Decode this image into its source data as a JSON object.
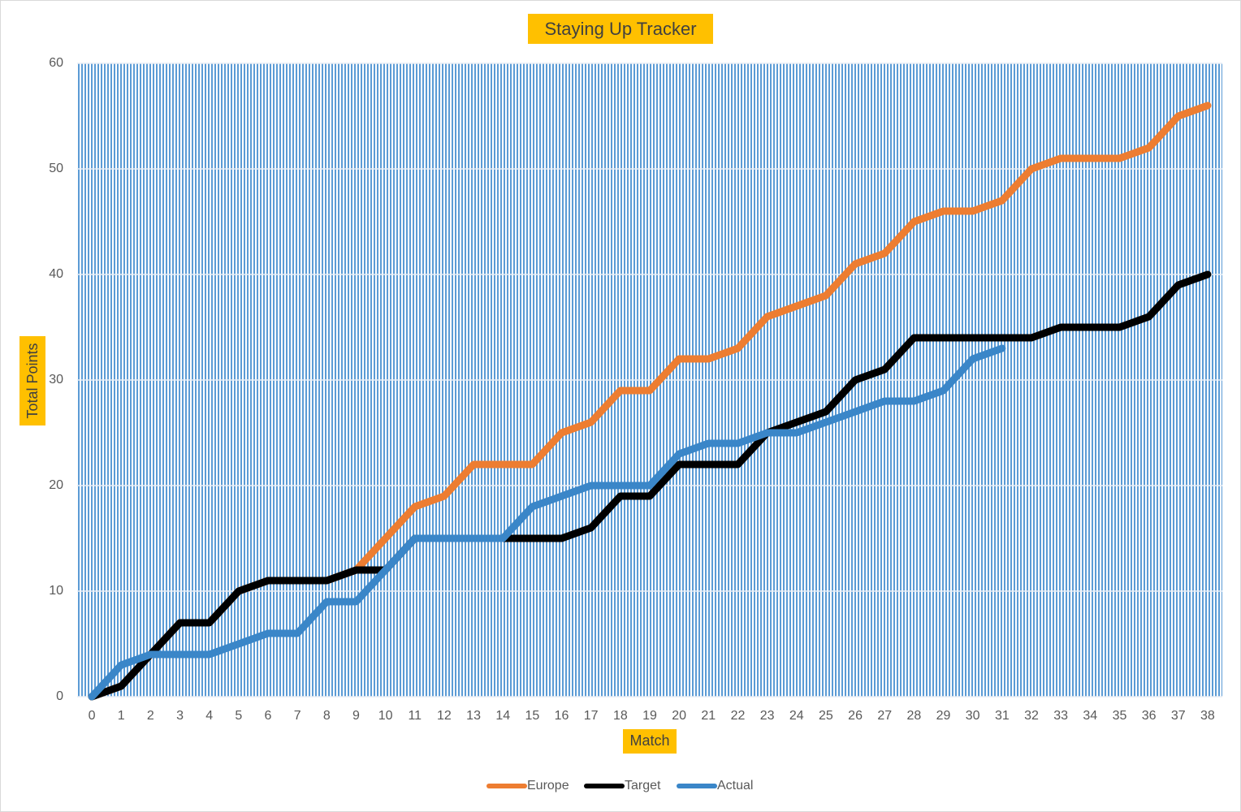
{
  "chart_data": {
    "type": "line",
    "title": "Staying Up Tracker",
    "xlabel": "Match",
    "ylabel": "Total Points",
    "x": [
      0,
      1,
      2,
      3,
      4,
      5,
      6,
      7,
      8,
      9,
      10,
      11,
      12,
      13,
      14,
      15,
      16,
      17,
      18,
      19,
      20,
      21,
      22,
      23,
      24,
      25,
      26,
      27,
      28,
      29,
      30,
      31,
      32,
      33,
      34,
      35,
      36,
      37,
      38
    ],
    "xlim": [
      -0.5,
      38.5
    ],
    "ylim": [
      0,
      60
    ],
    "yticks": [
      0,
      10,
      20,
      30,
      40,
      50,
      60
    ],
    "grid": true,
    "legend": "bottom",
    "series": [
      {
        "name": "Europe",
        "color": "#ed7d31",
        "values": [
          0,
          1,
          4,
          7,
          7,
          10,
          11,
          11,
          11,
          12,
          15,
          18,
          19,
          22,
          22,
          22,
          25,
          26,
          29,
          29,
          32,
          32,
          33,
          36,
          37,
          38,
          41,
          42,
          45,
          46,
          46,
          47,
          50,
          51,
          51,
          51,
          52,
          55,
          56
        ]
      },
      {
        "name": "Target",
        "color": "#000000",
        "values": [
          0,
          1,
          4,
          7,
          7,
          10,
          11,
          11,
          11,
          12,
          12,
          15,
          15,
          15,
          15,
          15,
          15,
          16,
          19,
          19,
          22,
          22,
          22,
          25,
          26,
          27,
          30,
          31,
          34,
          34,
          34,
          34,
          34,
          35,
          35,
          35,
          36,
          39,
          40
        ]
      },
      {
        "name": "Actual",
        "color": "#3a86c8",
        "values": [
          0,
          3,
          4,
          4,
          4,
          5,
          6,
          6,
          9,
          9,
          12,
          15,
          15,
          15,
          15,
          18,
          19,
          20,
          20,
          20,
          23,
          24,
          24,
          25,
          25,
          26,
          27,
          28,
          28,
          29,
          32,
          33,
          null,
          null,
          null,
          null,
          null,
          null,
          null
        ]
      }
    ]
  }
}
